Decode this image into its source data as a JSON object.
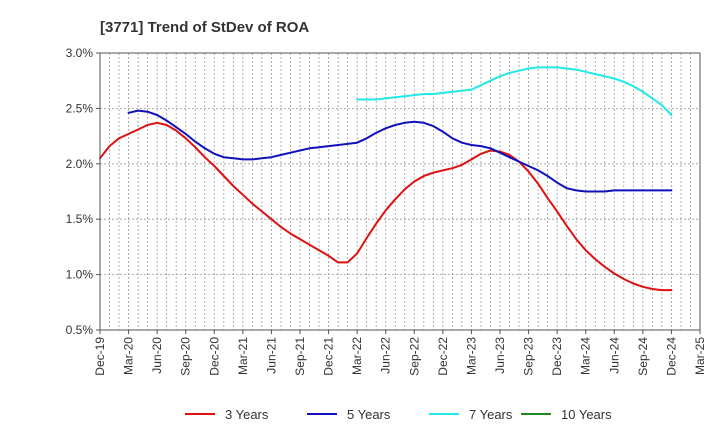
{
  "chart_data": {
    "type": "line",
    "title": "[3771]  Trend of StDev of ROA",
    "xlabel": "",
    "ylabel": "",
    "x_ticks": [
      "Dec-19",
      "Mar-20",
      "Jun-20",
      "Sep-20",
      "Dec-20",
      "Mar-21",
      "Jun-21",
      "Sep-21",
      "Dec-21",
      "Mar-22",
      "Jun-22",
      "Sep-22",
      "Dec-22",
      "Mar-23",
      "Jun-23",
      "Sep-23",
      "Dec-23",
      "Mar-24",
      "Jun-24",
      "Sep-24",
      "Dec-24",
      "Mar-25"
    ],
    "y_ticks": [
      "0.5%",
      "1.0%",
      "1.5%",
      "2.0%",
      "2.5%",
      "3.0%"
    ],
    "y_tick_values": [
      0.5,
      1.0,
      1.5,
      2.0,
      2.5,
      3.0
    ],
    "ylim": [
      0.5,
      3.0
    ],
    "grid": true,
    "legend_position": "bottom",
    "series": [
      {
        "name": "3 Years",
        "color": "#dd1111",
        "x": [
          "2019-12",
          "2020-01",
          "2020-02",
          "2020-03",
          "2020-04",
          "2020-05",
          "2020-06",
          "2020-07",
          "2020-08",
          "2020-09",
          "2020-10",
          "2020-11",
          "2020-12",
          "2021-01",
          "2021-02",
          "2021-03",
          "2021-04",
          "2021-05",
          "2021-06",
          "2021-07",
          "2021-08",
          "2021-09",
          "2021-10",
          "2021-11",
          "2021-12",
          "2022-01",
          "2022-02",
          "2022-03",
          "2022-04",
          "2022-05",
          "2022-06",
          "2022-07",
          "2022-08",
          "2022-09",
          "2022-10",
          "2022-11",
          "2022-12",
          "2023-01",
          "2023-02",
          "2023-03",
          "2023-04",
          "2023-05",
          "2023-06",
          "2023-07",
          "2023-08",
          "2023-09",
          "2023-10",
          "2023-11",
          "2023-12",
          "2024-01",
          "2024-02",
          "2024-03",
          "2024-04",
          "2024-05",
          "2024-06",
          "2024-07",
          "2024-08",
          "2024-09",
          "2024-10",
          "2024-11",
          "2024-12"
        ],
        "values": [
          2.05,
          2.16,
          2.23,
          2.27,
          2.31,
          2.35,
          2.37,
          2.35,
          2.3,
          2.23,
          2.15,
          2.06,
          1.98,
          1.89,
          1.8,
          1.72,
          1.64,
          1.57,
          1.5,
          1.43,
          1.37,
          1.32,
          1.27,
          1.22,
          1.17,
          1.11,
          1.11,
          1.19,
          1.33,
          1.46,
          1.58,
          1.68,
          1.77,
          1.84,
          1.89,
          1.92,
          1.94,
          1.96,
          1.99,
          2.04,
          2.09,
          2.12,
          2.11,
          2.08,
          2.02,
          1.93,
          1.82,
          1.69,
          1.57,
          1.44,
          1.32,
          1.22,
          1.14,
          1.07,
          1.01,
          0.96,
          0.92,
          0.89,
          0.87,
          0.86,
          0.86
        ]
      },
      {
        "name": "5 Years",
        "color": "#1111bb",
        "x": [
          "2020-03",
          "2020-04",
          "2020-05",
          "2020-06",
          "2020-07",
          "2020-08",
          "2020-09",
          "2020-10",
          "2020-11",
          "2020-12",
          "2021-01",
          "2021-02",
          "2021-03",
          "2021-04",
          "2021-05",
          "2021-06",
          "2021-07",
          "2021-08",
          "2021-09",
          "2021-10",
          "2021-11",
          "2021-12",
          "2022-01",
          "2022-02",
          "2022-03",
          "2022-04",
          "2022-05",
          "2022-06",
          "2022-07",
          "2022-08",
          "2022-09",
          "2022-10",
          "2022-11",
          "2022-12",
          "2023-01",
          "2023-02",
          "2023-03",
          "2023-04",
          "2023-05",
          "2023-06",
          "2023-07",
          "2023-08",
          "2023-09",
          "2023-10",
          "2023-11",
          "2023-12",
          "2024-01",
          "2024-02",
          "2024-03",
          "2024-04",
          "2024-05",
          "2024-06",
          "2024-07",
          "2024-08",
          "2024-09",
          "2024-10",
          "2024-11",
          "2024-12"
        ],
        "values": [
          2.46,
          2.48,
          2.47,
          2.44,
          2.39,
          2.33,
          2.27,
          2.2,
          2.14,
          2.09,
          2.06,
          2.05,
          2.04,
          2.04,
          2.05,
          2.06,
          2.08,
          2.1,
          2.12,
          2.14,
          2.15,
          2.16,
          2.17,
          2.18,
          2.19,
          2.23,
          2.28,
          2.32,
          2.35,
          2.37,
          2.38,
          2.37,
          2.34,
          2.29,
          2.23,
          2.19,
          2.17,
          2.16,
          2.14,
          2.1,
          2.06,
          2.02,
          1.98,
          1.94,
          1.89,
          1.83,
          1.78,
          1.76,
          1.75,
          1.75,
          1.75,
          1.76,
          1.76,
          1.76,
          1.76,
          1.76,
          1.76,
          1.76
        ]
      },
      {
        "name": "7 Years",
        "color": "#22e8e8",
        "x": [
          "2022-03",
          "2022-04",
          "2022-05",
          "2022-06",
          "2022-07",
          "2022-08",
          "2022-09",
          "2022-10",
          "2022-11",
          "2022-12",
          "2023-01",
          "2023-02",
          "2023-03",
          "2023-04",
          "2023-05",
          "2023-06",
          "2023-07",
          "2023-08",
          "2023-09",
          "2023-10",
          "2023-11",
          "2023-12",
          "2024-01",
          "2024-02",
          "2024-03",
          "2024-04",
          "2024-05",
          "2024-06",
          "2024-07",
          "2024-08",
          "2024-09",
          "2024-10",
          "2024-11",
          "2024-12"
        ],
        "values": [
          2.58,
          2.58,
          2.58,
          2.59,
          2.6,
          2.61,
          2.62,
          2.63,
          2.63,
          2.64,
          2.65,
          2.66,
          2.67,
          2.71,
          2.75,
          2.79,
          2.82,
          2.84,
          2.86,
          2.87,
          2.87,
          2.87,
          2.86,
          2.85,
          2.83,
          2.81,
          2.79,
          2.77,
          2.74,
          2.7,
          2.65,
          2.59,
          2.53,
          2.44
        ]
      },
      {
        "name": "10 Years",
        "color": "#228822",
        "x": [],
        "values": []
      }
    ]
  }
}
